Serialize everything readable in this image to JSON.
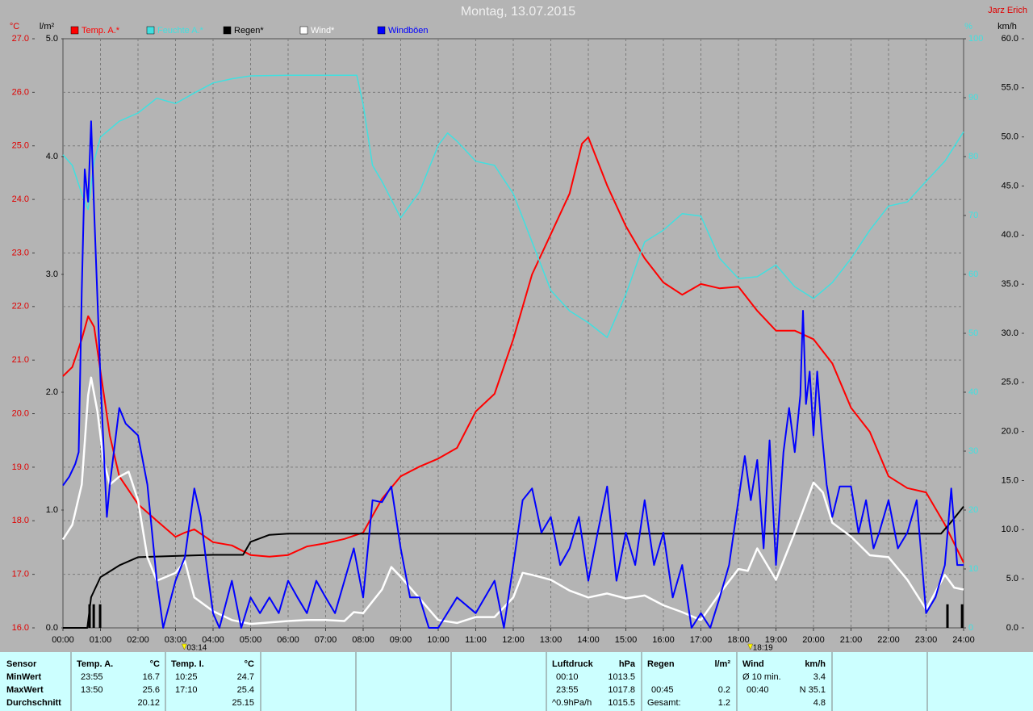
{
  "chart_data": {
    "type": "line",
    "title": "Montag, 13.07.2015",
    "author": "Jarz Erich",
    "xlim": [
      0,
      24
    ],
    "xticks": [
      {
        "value": 0,
        "label": "00:00"
      },
      {
        "value": 1,
        "label": "01:00"
      },
      {
        "value": 2,
        "label": "02:00"
      },
      {
        "value": 3,
        "label": "03:00"
      },
      {
        "value": 4,
        "label": "04:00"
      },
      {
        "value": 5,
        "label": "05:00"
      },
      {
        "value": 6,
        "label": "06:00"
      },
      {
        "value": 7,
        "label": "07:00"
      },
      {
        "value": 8,
        "label": "08:00"
      },
      {
        "value": 9,
        "label": "09:00"
      },
      {
        "value": 10,
        "label": "10:00"
      },
      {
        "value": 11,
        "label": "11:00"
      },
      {
        "value": 12,
        "label": "12:00"
      },
      {
        "value": 13,
        "label": "13:00"
      },
      {
        "value": 14,
        "label": "14:00"
      },
      {
        "value": 15,
        "label": "15:00"
      },
      {
        "value": 16,
        "label": "16:00"
      },
      {
        "value": 17,
        "label": "17:00"
      },
      {
        "value": 18,
        "label": "18:00"
      },
      {
        "value": 19,
        "label": "19:00"
      },
      {
        "value": 20,
        "label": "20:00"
      },
      {
        "value": 21,
        "label": "21:00"
      },
      {
        "value": 22,
        "label": "22:00"
      },
      {
        "value": 23,
        "label": "23:00"
      },
      {
        "value": 24,
        "label": "24:00"
      }
    ],
    "x_markers": [
      {
        "value": 3.2333,
        "label": "03:14"
      },
      {
        "value": 18.3167,
        "label": "18:19"
      }
    ],
    "grid": true,
    "y_unit": "°C",
    "ylim": [
      16,
      27
    ],
    "yticks": [
      {
        "value": 16,
        "label": "16.0"
      },
      {
        "value": 17,
        "label": "17.0"
      },
      {
        "value": 18,
        "label": "18.0"
      },
      {
        "value": 19,
        "label": "19.0"
      },
      {
        "value": 20,
        "label": "20.0"
      },
      {
        "value": 21,
        "label": "21.0"
      },
      {
        "value": 22,
        "label": "22.0"
      },
      {
        "value": 23,
        "label": "23.0"
      },
      {
        "value": 24,
        "label": "24.0"
      },
      {
        "value": 25,
        "label": "25.0"
      },
      {
        "value": 26,
        "label": "26.0"
      },
      {
        "value": 27,
        "label": "27.0"
      }
    ],
    "y2_unit": "l/m²",
    "y2lim": [
      0,
      5
    ],
    "y2ticks": [
      {
        "value": 0,
        "label": "0.0"
      },
      {
        "value": 1,
        "label": "1.0"
      },
      {
        "value": 2,
        "label": "2.0"
      },
      {
        "value": 3,
        "label": "3.0"
      },
      {
        "value": 4,
        "label": "4.0"
      },
      {
        "value": 5,
        "label": "5.0"
      }
    ],
    "y3_unit": "%",
    "y3lim": [
      0,
      100
    ],
    "y3ticks": [
      0,
      10,
      20,
      30,
      40,
      50,
      60,
      70,
      80,
      90,
      100
    ],
    "y4_unit": "km/h",
    "y4lim": [
      0,
      60
    ],
    "y4ticks": [
      {
        "value": 0,
        "label": "0.0"
      },
      {
        "value": 5,
        "label": "5.0"
      },
      {
        "value": 10,
        "label": "10.0"
      },
      {
        "value": 15,
        "label": "15.0"
      },
      {
        "value": 20,
        "label": "20.0"
      },
      {
        "value": 25,
        "label": "25.0"
      },
      {
        "value": 30,
        "label": "30.0"
      },
      {
        "value": 35,
        "label": "35.0"
      },
      {
        "value": 40,
        "label": "40.0"
      },
      {
        "value": 45,
        "label": "45.0"
      },
      {
        "value": 50,
        "label": "50.0"
      },
      {
        "value": 55,
        "label": "55.0"
      },
      {
        "value": 60,
        "label": "60.0"
      }
    ],
    "series": [
      {
        "name": "Temp. A.*",
        "color": "#ff0000",
        "axis": "y",
        "x": [
          0,
          0.25,
          0.5,
          0.67,
          0.83,
          1,
          1.25,
          1.5,
          2,
          2.5,
          3,
          3.25,
          3.5,
          4,
          4.5,
          5,
          5.5,
          6,
          6.5,
          7,
          7.5,
          8,
          8.5,
          9,
          9.5,
          10,
          10.5,
          11,
          11.5,
          12,
          12.5,
          13,
          13.5,
          13.83,
          14,
          14.5,
          15,
          15.5,
          16,
          16.5,
          17,
          17.5,
          18,
          18.5,
          19,
          19.5,
          20,
          20.5,
          21,
          21.5,
          22,
          22.5,
          23,
          23.5,
          24
        ],
        "values": [
          20.7,
          20.87,
          21.39,
          21.82,
          21.62,
          20.79,
          19.59,
          18.83,
          18.31,
          18.0,
          17.7,
          17.78,
          17.84,
          17.6,
          17.54,
          17.36,
          17.33,
          17.36,
          17.52,
          17.58,
          17.66,
          17.78,
          18.41,
          18.83,
          19.01,
          19.16,
          19.36,
          20.04,
          20.37,
          21.39,
          22.6,
          23.35,
          24.11,
          25.04,
          25.16,
          24.26,
          23.5,
          22.9,
          22.45,
          22.22,
          22.42,
          22.34,
          22.37,
          21.92,
          21.55,
          21.55,
          21.39,
          20.94,
          20.11,
          19.66,
          18.83,
          18.61,
          18.53,
          17.93,
          17.22
        ]
      },
      {
        "name": "Feuchte A.*",
        "color": "#40e0e0",
        "axis": "y3",
        "x": [
          0,
          0.25,
          0.5,
          0.67,
          0.83,
          1,
          1.5,
          2,
          2.5,
          3,
          3.5,
          4,
          4.5,
          5,
          6,
          7,
          7.83,
          8,
          8.25,
          8.5,
          9,
          9.5,
          10,
          10.25,
          10.5,
          11,
          11.5,
          12,
          12.5,
          13,
          13.5,
          14,
          14.5,
          15,
          15.5,
          16,
          16.5,
          17,
          17.5,
          18,
          18.5,
          19,
          19.5,
          20,
          20.5,
          21,
          21.5,
          22,
          22.5,
          23,
          23.5,
          24
        ],
        "values": [
          80.3,
          78.5,
          73.7,
          71.0,
          79.2,
          83.3,
          86.0,
          87.4,
          89.9,
          89.0,
          90.8,
          92.5,
          93.2,
          93.7,
          93.8,
          93.8,
          93.8,
          88.8,
          78.5,
          75.8,
          69.6,
          74.0,
          81.9,
          84.0,
          82.6,
          79.2,
          78.5,
          73.7,
          65.5,
          57.3,
          53.8,
          51.8,
          49.3,
          56.6,
          65.5,
          67.5,
          70.3,
          69.9,
          62.7,
          59.3,
          59.6,
          61.6,
          57.9,
          55.9,
          58.6,
          62.7,
          67.5,
          71.6,
          72.3,
          75.8,
          79.2,
          84.2
        ]
      },
      {
        "name": "Regen*",
        "color": "#000000",
        "axis": "y2",
        "x": [
          0,
          0.65,
          0.75,
          1,
          1.5,
          2,
          3,
          4,
          4.8,
          5,
          5.5,
          6,
          23.4,
          23.7,
          24
        ],
        "values": [
          0,
          0,
          0.26,
          0.43,
          0.53,
          0.6,
          0.61,
          0.62,
          0.62,
          0.73,
          0.79,
          0.8,
          0.8,
          0.91,
          1.03
        ],
        "bar_x": [
          0.71,
          0.82,
          0.99,
          23.57,
          23.96
        ],
        "bar_values": [
          0.2,
          0.2,
          0.2,
          0.2,
          0.2
        ]
      },
      {
        "name": "Wind*",
        "color": "#ffffff",
        "axis": "y4",
        "x": [
          0,
          0.25,
          0.5,
          0.67,
          0.75,
          0.92,
          1.08,
          1.25,
          1.5,
          1.75,
          2,
          2.25,
          2.5,
          3,
          3.25,
          3.5,
          4,
          4.5,
          5,
          6,
          6.5,
          7,
          7.5,
          7.75,
          8,
          8.5,
          8.75,
          9,
          9.5,
          10,
          10.5,
          11,
          11.5,
          12,
          12.25,
          12.5,
          13,
          13.5,
          14,
          14.5,
          15,
          15.5,
          16,
          16.5,
          17,
          17.5,
          18,
          18.25,
          18.5,
          19,
          19.5,
          20,
          20.25,
          20.5,
          21,
          21.5,
          22,
          22.5,
          23,
          23.5,
          23.75,
          24
        ],
        "values": [
          9.0,
          10.5,
          14.6,
          23.7,
          25.5,
          22.0,
          17.1,
          14.6,
          15.4,
          15.9,
          13.0,
          7.2,
          4.8,
          5.6,
          6.8,
          3.1,
          1.7,
          0.8,
          0.4,
          0.7,
          0.8,
          0.8,
          0.7,
          1.6,
          1.5,
          3.9,
          6.2,
          5.2,
          3.0,
          0.8,
          0.5,
          1.1,
          1.1,
          3.1,
          5.6,
          5.4,
          4.9,
          3.8,
          3.1,
          3.5,
          3.0,
          3.3,
          2.3,
          1.6,
          0.8,
          3.5,
          6.0,
          5.8,
          8.1,
          4.9,
          9.7,
          14.8,
          13.8,
          10.7,
          9.3,
          7.4,
          7.2,
          4.9,
          1.9,
          5.4,
          4.1,
          3.9
        ]
      },
      {
        "name": "Windböen",
        "color": "#0000ff",
        "axis": "y4",
        "x": [
          0,
          0.17,
          0.33,
          0.42,
          0.5,
          0.58,
          0.67,
          0.75,
          0.83,
          1,
          1.17,
          1.25,
          1.5,
          1.67,
          2,
          2.25,
          2.5,
          2.67,
          3,
          3.25,
          3.5,
          3.67,
          3.83,
          4,
          4.17,
          4.5,
          4.75,
          5,
          5.25,
          5.5,
          5.75,
          6,
          6.25,
          6.5,
          6.75,
          7,
          7.25,
          7.5,
          7.75,
          8,
          8.25,
          8.5,
          8.75,
          9,
          9.25,
          9.5,
          9.75,
          10,
          10.5,
          11,
          11.5,
          11.75,
          12,
          12.25,
          12.5,
          12.75,
          13,
          13.25,
          13.5,
          13.75,
          14,
          14.25,
          14.5,
          14.75,
          15,
          15.25,
          15.5,
          15.75,
          16,
          16.25,
          16.5,
          16.75,
          17,
          17.25,
          17.5,
          17.75,
          18,
          18.17,
          18.33,
          18.5,
          18.67,
          18.83,
          19,
          19.2,
          19.35,
          19.5,
          19.65,
          19.72,
          19.8,
          19.9,
          20,
          20.1,
          20.2,
          20.35,
          20.5,
          20.7,
          21,
          21.2,
          21.4,
          21.6,
          21.75,
          22,
          22.25,
          22.5,
          22.75,
          23,
          23.25,
          23.5,
          23.67,
          23.83,
          24
        ],
        "values": [
          14.5,
          15.4,
          16.7,
          17.9,
          34.3,
          46.7,
          43.4,
          51.6,
          42.6,
          25.3,
          11.3,
          14.6,
          22.4,
          20.8,
          19.6,
          14.6,
          4.8,
          0,
          4.8,
          7.2,
          14.2,
          11.3,
          6.4,
          1.5,
          0,
          4.8,
          0,
          3.1,
          1.5,
          3.1,
          1.5,
          4.8,
          3.1,
          1.5,
          4.8,
          3.1,
          1.5,
          4.8,
          8.1,
          3.1,
          13.0,
          12.8,
          14.4,
          8.1,
          3.1,
          3.1,
          0,
          0,
          3.1,
          1.5,
          4.8,
          0,
          6.4,
          13.0,
          14.2,
          9.7,
          11.3,
          6.4,
          8.1,
          11.3,
          4.8,
          9.7,
          14.4,
          4.8,
          9.7,
          6.4,
          13.0,
          6.4,
          9.7,
          3.1,
          6.4,
          0,
          1.5,
          0,
          3.1,
          6.4,
          13.0,
          17.5,
          13.0,
          17.1,
          8.1,
          19.1,
          6.4,
          17.9,
          22.4,
          17.9,
          23.7,
          32.3,
          22.8,
          26.1,
          19.6,
          26.1,
          20.8,
          14.6,
          11.3,
          14.4,
          14.4,
          9.7,
          13.0,
          8.1,
          9.7,
          13.0,
          8.1,
          9.7,
          13.0,
          1.5,
          3.1,
          6.4,
          14.2,
          6.4,
          6.4
        ]
      }
    ]
  },
  "table": {
    "row_labels": [
      "Sensor",
      "MinWert",
      "MaxWert",
      "Durchschnitt"
    ],
    "columns": [
      {
        "header": "Temp. A.",
        "unit": "°C",
        "rows": [
          {
            "label": "23:55",
            "value": "16.7"
          },
          {
            "label": "13:50",
            "value": "25.6"
          },
          {
            "value": "20.12"
          }
        ]
      },
      {
        "header": "Temp. I.",
        "unit": "°C",
        "rows": [
          {
            "label": "10:25",
            "value": "24.7"
          },
          {
            "label": "17:10",
            "value": "25.4"
          },
          {
            "value": "25.15"
          }
        ]
      },
      {
        "header": "Luftdruck",
        "unit": "hPa",
        "rows": [
          {
            "label": "00:10",
            "value": "1013.5"
          },
          {
            "label": "23:55",
            "value": "1017.8"
          },
          {
            "label": "^0.9hPa/h",
            "value": "1015.5"
          }
        ]
      },
      {
        "header": "Regen",
        "unit": "l/m²",
        "rows": [
          null,
          {
            "label": "00:45",
            "value": "0.2"
          },
          {
            "label": "Gesamt:",
            "value": "1.2"
          }
        ]
      },
      {
        "header": "Wind",
        "unit": "km/h",
        "rows": [
          {
            "label": "Ø 10 min.",
            "value": "3.4"
          },
          {
            "label": "00:40",
            "value": "N 35.1"
          },
          {
            "value": "4.8"
          }
        ]
      }
    ]
  }
}
